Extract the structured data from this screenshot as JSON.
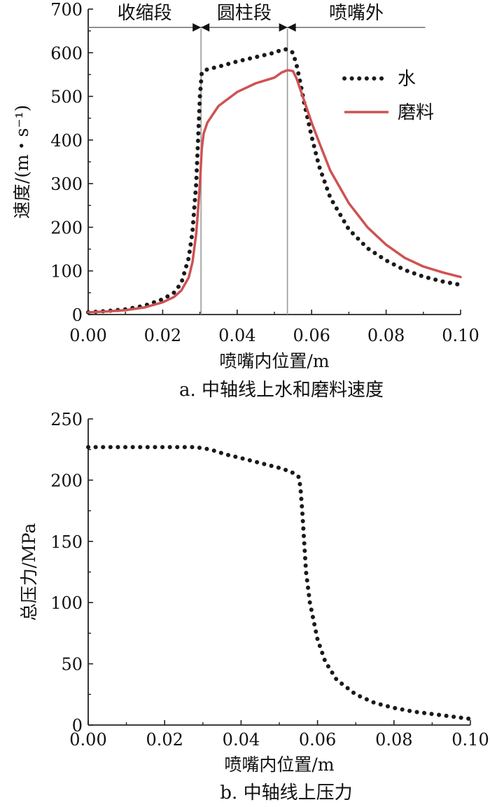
{
  "chart_data": [
    {
      "type": "line",
      "caption": "a. 中轴线上水和磨料速度",
      "xlabel": "喷嘴内位置/m",
      "ylabel": "速度/(m・s⁻¹)",
      "xlim": [
        0,
        0.1
      ],
      "ylim": [
        0,
        700
      ],
      "xticks": [
        "0.00",
        "0.02",
        "0.04",
        "0.06",
        "0.08",
        "0.10"
      ],
      "yticks": [
        "0",
        "100",
        "200",
        "300",
        "400",
        "500",
        "600",
        "700"
      ],
      "grid": false,
      "legend_position": "top-right",
      "regions": [
        {
          "label": "收缩段",
          "from": 0.0,
          "to": 0.0303
        },
        {
          "label": "圆柱段",
          "from": 0.0303,
          "to": 0.0535
        },
        {
          "label": "喷嘴外",
          "from": 0.0535,
          "to": 0.0905
        }
      ],
      "boundaries": [
        0.0303,
        0.0535
      ],
      "series": [
        {
          "name": "水",
          "style": "dotted",
          "color": "#1a1a1a",
          "points": [
            [
              0.0,
              5
            ],
            [
              0.005,
              8
            ],
            [
              0.01,
              12
            ],
            [
              0.015,
              20
            ],
            [
              0.02,
              35
            ],
            [
              0.023,
              50
            ],
            [
              0.025,
              72
            ],
            [
              0.027,
              130
            ],
            [
              0.028,
              190
            ],
            [
              0.029,
              300
            ],
            [
              0.0295,
              400
            ],
            [
              0.03,
              500
            ],
            [
              0.0305,
              555
            ],
            [
              0.032,
              562
            ],
            [
              0.035,
              568
            ],
            [
              0.04,
              580
            ],
            [
              0.045,
              590
            ],
            [
              0.05,
              600
            ],
            [
              0.052,
              607
            ],
            [
              0.0535,
              608
            ],
            [
              0.055,
              600
            ],
            [
              0.056,
              570
            ],
            [
              0.057,
              530
            ],
            [
              0.058,
              485
            ],
            [
              0.06,
              408
            ],
            [
              0.062,
              340
            ],
            [
              0.065,
              268
            ],
            [
              0.07,
              195
            ],
            [
              0.075,
              152
            ],
            [
              0.08,
              124
            ],
            [
              0.085,
              102
            ],
            [
              0.09,
              87
            ],
            [
              0.095,
              76
            ],
            [
              0.1,
              68
            ]
          ]
        },
        {
          "name": "磨料",
          "style": "solid",
          "color": "#cf5253",
          "points": [
            [
              0.0,
              5
            ],
            [
              0.005,
              7
            ],
            [
              0.01,
              10
            ],
            [
              0.015,
              16
            ],
            [
              0.02,
              28
            ],
            [
              0.023,
              40
            ],
            [
              0.025,
              55
            ],
            [
              0.027,
              85
            ],
            [
              0.028,
              120
            ],
            [
              0.029,
              185
            ],
            [
              0.0295,
              240
            ],
            [
              0.03,
              300
            ],
            [
              0.0305,
              380
            ],
            [
              0.031,
              415
            ],
            [
              0.032,
              440
            ],
            [
              0.035,
              478
            ],
            [
              0.04,
              510
            ],
            [
              0.045,
              530
            ],
            [
              0.05,
              543
            ],
            [
              0.052,
              555
            ],
            [
              0.0535,
              560
            ],
            [
              0.055,
              558
            ],
            [
              0.056,
              540
            ],
            [
              0.058,
              490
            ],
            [
              0.06,
              440
            ],
            [
              0.062,
              395
            ],
            [
              0.065,
              330
            ],
            [
              0.07,
              255
            ],
            [
              0.075,
              200
            ],
            [
              0.08,
              160
            ],
            [
              0.085,
              130
            ],
            [
              0.09,
              110
            ],
            [
              0.095,
              97
            ],
            [
              0.1,
              86
            ]
          ]
        }
      ]
    },
    {
      "type": "line",
      "caption": "b. 中轴线上压力",
      "xlabel": "喷嘴内位置/m",
      "ylabel": "总压力/MPa",
      "xlim": [
        0,
        0.1
      ],
      "ylim": [
        0,
        250
      ],
      "xticks": [
        "0.00",
        "0.02",
        "0.04",
        "0.06",
        "0.08",
        "0.10"
      ],
      "yticks": [
        "0",
        "50",
        "100",
        "150",
        "200",
        "250"
      ],
      "grid": false,
      "series": [
        {
          "style": "dotted",
          "color": "#1a1a1a",
          "points": [
            [
              0.0,
              227
            ],
            [
              0.01,
              227
            ],
            [
              0.02,
              227
            ],
            [
              0.028,
              227
            ],
            [
              0.032,
              225
            ],
            [
              0.036,
              221
            ],
            [
              0.04,
              218
            ],
            [
              0.045,
              214
            ],
            [
              0.05,
              210
            ],
            [
              0.053,
              207
            ],
            [
              0.055,
              203
            ],
            [
              0.0555,
              195
            ],
            [
              0.056,
              175
            ],
            [
              0.0565,
              150
            ],
            [
              0.057,
              125
            ],
            [
              0.058,
              100
            ],
            [
              0.06,
              70
            ],
            [
              0.062,
              52
            ],
            [
              0.065,
              37
            ],
            [
              0.07,
              25
            ],
            [
              0.075,
              18
            ],
            [
              0.08,
              14
            ],
            [
              0.085,
              11
            ],
            [
              0.09,
              9
            ],
            [
              0.095,
              7
            ],
            [
              0.1,
              5
            ]
          ]
        }
      ]
    }
  ]
}
